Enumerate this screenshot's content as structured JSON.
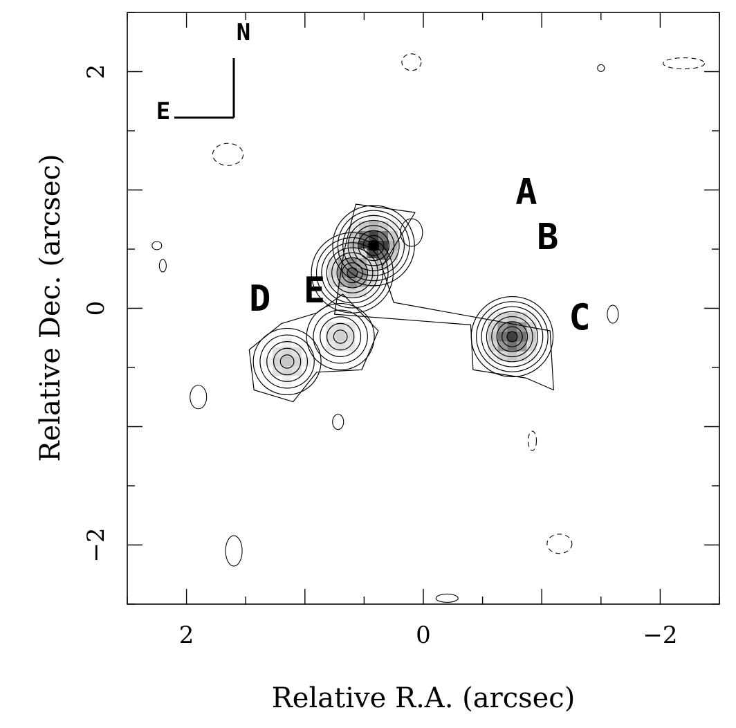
{
  "chart_data": {
    "type": "contour",
    "xlabel": "Relative R.A. (arcsec)",
    "ylabel": "Relative Dec. (arcsec)",
    "xlim": [
      2.5,
      -2.5
    ],
    "ylim": [
      -2.5,
      2.5
    ],
    "x_ticks": [
      {
        "value": 2,
        "label": "2"
      },
      {
        "value": 0,
        "label": "0"
      },
      {
        "value": -2,
        "label": "−2"
      }
    ],
    "y_ticks": [
      {
        "value": 2,
        "label": "2"
      },
      {
        "value": 0,
        "label": "0"
      },
      {
        "value": -2,
        "label": "−2"
      }
    ],
    "components": [
      {
        "label": "A",
        "x": 0.42,
        "y": 0.53,
        "peak": 1.0,
        "label_x": -0.87,
        "label_y": 0.88
      },
      {
        "label": "B",
        "x": 0.6,
        "y": 0.3,
        "peak": 0.6,
        "label_x": -1.05,
        "label_y": 0.5
      },
      {
        "label": "C",
        "x": -0.75,
        "y": -0.24,
        "peak": 0.75,
        "label_x": -1.32,
        "label_y": -0.18
      },
      {
        "label": "D",
        "x": 1.15,
        "y": -0.45,
        "peak": 0.22,
        "label_x": 1.38,
        "label_y": -0.02
      },
      {
        "label": "E",
        "x": 0.7,
        "y": -0.24,
        "peak": 0.18,
        "label_x": 0.92,
        "label_y": 0.05
      }
    ],
    "compass": {
      "north_label": "N",
      "east_label": "E"
    },
    "grid": false,
    "colormap": "greyscale"
  }
}
